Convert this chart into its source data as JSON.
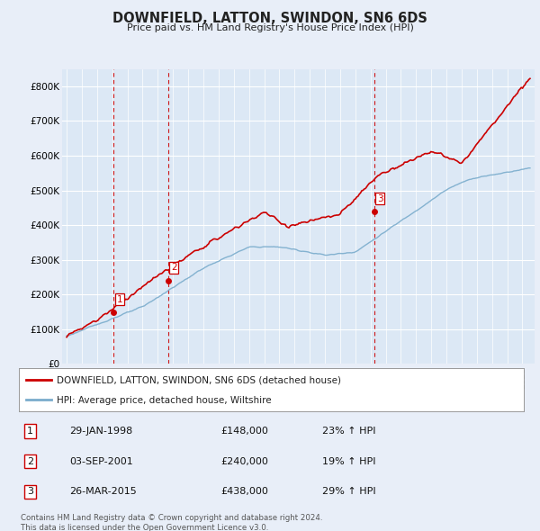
{
  "title": "DOWNFIELD, LATTON, SWINDON, SN6 6DS",
  "subtitle": "Price paid vs. HM Land Registry's House Price Index (HPI)",
  "ylim": [
    0,
    850000
  ],
  "yticks": [
    0,
    100000,
    200000,
    300000,
    400000,
    500000,
    600000,
    700000,
    800000
  ],
  "ytick_labels": [
    "£0",
    "£100K",
    "£200K",
    "£300K",
    "£400K",
    "£500K",
    "£600K",
    "£700K",
    "£800K"
  ],
  "background_color": "#e8eef8",
  "plot_bg_color": "#dce8f5",
  "grid_color": "#ffffff",
  "sale_years": [
    1998.08,
    2001.67,
    2015.23
  ],
  "sale_prices": [
    148000,
    240000,
    438000
  ],
  "sale_labels": [
    "1",
    "2",
    "3"
  ],
  "sale_pct": [
    "23% ↑ HPI",
    "19% ↑ HPI",
    "29% ↑ HPI"
  ],
  "sale_price_strs": [
    "£148,000",
    "£240,000",
    "£438,000"
  ],
  "sale_date_labels": [
    "29-JAN-1998",
    "03-SEP-2001",
    "26-MAR-2015"
  ],
  "legend_line1": "DOWNFIELD, LATTON, SWINDON, SN6 6DS (detached house)",
  "legend_line2": "HPI: Average price, detached house, Wiltshire",
  "footer": "Contains HM Land Registry data © Crown copyright and database right 2024.\nThis data is licensed under the Open Government Licence v3.0.",
  "red_line_color": "#cc0000",
  "blue_line_color": "#7aaccc",
  "vline_color": "#cc0000",
  "title_color": "#222222",
  "table_border_color": "#cc0000",
  "xlim_left": 1994.7,
  "xlim_right": 2025.8
}
